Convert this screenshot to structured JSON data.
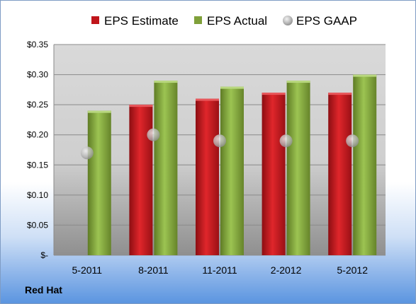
{
  "company": "Red Hat",
  "chart_data": {
    "type": "bar",
    "title": "",
    "xlabel": "",
    "ylabel": "",
    "categories": [
      "5-2011",
      "8-2011",
      "11-2011",
      "2-2012",
      "5-2012"
    ],
    "series": [
      {
        "name": "EPS Estimate",
        "kind": "bar",
        "color": "#c0151b",
        "values": [
          null,
          0.25,
          0.26,
          0.27,
          0.27
        ]
      },
      {
        "name": "EPS Actual",
        "kind": "bar",
        "color": "#7fa03a",
        "values": [
          0.24,
          0.29,
          0.28,
          0.29,
          0.3
        ]
      },
      {
        "name": "EPS GAAP",
        "kind": "marker",
        "color": "#b0b0b0",
        "values": [
          0.17,
          0.2,
          0.19,
          0.19,
          0.19
        ]
      }
    ],
    "ylim": [
      0,
      0.35
    ],
    "yticks": [
      0,
      0.05,
      0.1,
      0.15,
      0.2,
      0.25,
      0.3,
      0.35
    ],
    "ytick_labels": [
      "$-",
      "$0.05",
      "$0.10",
      "$0.15",
      "$0.20",
      "$0.25",
      "$0.30",
      "$0.35"
    ],
    "grid": true,
    "legend": "top"
  }
}
